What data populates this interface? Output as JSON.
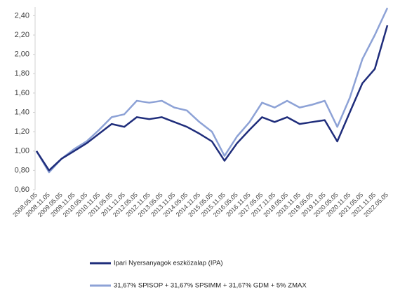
{
  "chart_data": {
    "type": "line",
    "categories": [
      "2008.05.05",
      "2008.11.05",
      "2009.05.05",
      "2009.11.05",
      "2010.05.05",
      "2010.11.05",
      "2011.05.05",
      "2011.11.05",
      "2012.05.05",
      "2012.11.05",
      "2013.05.05",
      "2013.11.05",
      "2014.05.05",
      "2014.11.05",
      "2015.05.05",
      "2015.11.05",
      "2016.05.05",
      "2016.11.05",
      "2017.05.05",
      "2017.11.05",
      "2018.05.05",
      "2018.11.05",
      "2019.05.05",
      "2019.11.05",
      "2020.05.05",
      "2020.11.05",
      "2021.05.05",
      "2021.11.05",
      "2022.05.05"
    ],
    "series": [
      {
        "name": "31,67% SPISOP + 31,67% SPSIMM + 31,67% GDM + 5% ZMAX",
        "color": "#8da2d6",
        "values": [
          1.0,
          0.78,
          0.92,
          1.02,
          1.1,
          1.22,
          1.35,
          1.38,
          1.52,
          1.5,
          1.52,
          1.45,
          1.42,
          1.3,
          1.2,
          0.95,
          1.15,
          1.3,
          1.5,
          1.45,
          1.52,
          1.45,
          1.48,
          1.52,
          1.25,
          1.55,
          1.95,
          2.2,
          2.48
        ]
      },
      {
        "name": "Ipari Nyersanyagok eszközalap (IPA)",
        "color": "#1f2d7b",
        "values": [
          1.0,
          0.8,
          0.92,
          1.0,
          1.08,
          1.18,
          1.28,
          1.25,
          1.35,
          1.33,
          1.35,
          1.3,
          1.25,
          1.18,
          1.1,
          0.9,
          1.08,
          1.22,
          1.35,
          1.3,
          1.35,
          1.28,
          1.3,
          1.32,
          1.1,
          1.4,
          1.7,
          1.85,
          2.3
        ]
      }
    ],
    "ylim": [
      0.6,
      2.49
    ],
    "yticks": [
      {
        "value": 0.6,
        "label": "0,60"
      },
      {
        "value": 0.8,
        "label": "0,80"
      },
      {
        "value": 1.0,
        "label": "1,00"
      },
      {
        "value": 1.2,
        "label": "1,20"
      },
      {
        "value": 1.4,
        "label": "1,40"
      },
      {
        "value": 1.6,
        "label": "1,60"
      },
      {
        "value": 1.8,
        "label": "1,80"
      },
      {
        "value": 2.0,
        "label": "2,00"
      },
      {
        "value": 2.2,
        "label": "2,20"
      },
      {
        "value": 2.4,
        "label": "2,40"
      }
    ]
  }
}
